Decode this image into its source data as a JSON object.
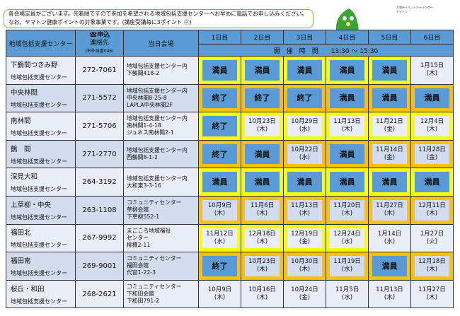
{
  "notice": {
    "line1": "各会場定員がございます。先着順ですので参加を希望される地域包括支援センターへお早めに電話でお申し込みください。",
    "line2": "なお、ヤマトン健康ポイントの対象事業です。(講座受講毎に3ポイント ⓟ)"
  },
  "mascot": {
    "caption1": "大和市イベントキャラクター",
    "caption2": "ヤマトン"
  },
  "header": {
    "center": "地域包括支援センター",
    "phone_line1": "☎申込",
    "phone_line2": "連絡先",
    "phone_note": "(市外局番046)",
    "venue": "当日会場",
    "days": [
      "1日目",
      "2日目",
      "3日目",
      "4日目",
      "5日目",
      "6日目"
    ],
    "time_label": "開　催　時　間　　13:30 ～ 15:30"
  },
  "colors": {
    "header": "#5b9bd5",
    "yellow": "#ffff00",
    "orange": "#ffc000",
    "status": "#5b9bd5"
  },
  "rows": [
    {
      "name": "下鶴間つきみ野",
      "sub": "地域包括支援センター",
      "phone": "272-7061",
      "venue": [
        "地域包括支援センター内",
        "下鶴間418-2"
      ],
      "cells": [
        {
          "t": "満員",
          "s": 1,
          "f": "yellow"
        },
        {
          "t": "満員",
          "s": 1,
          "f": "yellow"
        },
        {
          "t": "満員",
          "s": 1,
          "f": "yellow"
        },
        {
          "t": "満員",
          "s": 1,
          "f": "yellow"
        },
        {
          "t": "満員",
          "s": 1,
          "f": "yellow"
        },
        {
          "t": "1月15日",
          "d": "(木)",
          "f": ""
        }
      ]
    },
    {
      "name": "中央林間",
      "sub": "地域包括支援センター",
      "phone": "271-5572",
      "venue": [
        "地域包括支援センター内",
        "中央林間8-25-8",
        "LAPLA中央林間2F"
      ],
      "cells": [
        {
          "t": "終了",
          "s": 1,
          "f": "orange"
        },
        {
          "t": "終了",
          "s": 1,
          "f": "orange"
        },
        {
          "t": "終了",
          "s": 1,
          "f": "orange"
        },
        {
          "t": "満員",
          "s": 1,
          "f": "orange"
        },
        {
          "t": "満員",
          "s": 1,
          "f": "orange"
        },
        {
          "t": "満員",
          "s": 1,
          "f": "orange"
        }
      ]
    },
    {
      "name": "南林間",
      "sub": "地域包括支援センター",
      "phone": "271-5706",
      "venue": [
        "地域包括支援センター内",
        "南林間1-4-18",
        "ジュネス南林間2-1"
      ],
      "cells": [
        {
          "t": "終了",
          "s": 1,
          "f": "yellow"
        },
        {
          "t": "10月23日",
          "d": "(木)",
          "f": "yellow"
        },
        {
          "t": "10月29日",
          "d": "(水)",
          "f": "yellow"
        },
        {
          "t": "11月13日",
          "d": "(木)",
          "f": "yellow"
        },
        {
          "t": "11月21日",
          "d": "(金)",
          "f": "yellow"
        },
        {
          "t": "12月4日",
          "d": "(木)",
          "f": "yellow"
        }
      ]
    },
    {
      "name": "鶴　間",
      "sub": "地域包括支援センター",
      "phone": "271-2770",
      "venue": [
        "地域包括支援センター内",
        "西鶴間8-1-2"
      ],
      "cells": [
        {
          "t": "終了",
          "s": 1,
          "f": "orange"
        },
        {
          "t": "満員",
          "s": 1,
          "f": "orange"
        },
        {
          "t": "10月22日",
          "d": "(水)",
          "f": "orange"
        },
        {
          "t": "満員",
          "s": 1,
          "f": "orange"
        },
        {
          "t": "11月14日",
          "d": "(金)",
          "f": "orange"
        },
        {
          "t": "11月28日",
          "d": "(金)",
          "f": "orange"
        }
      ]
    },
    {
      "name": "深見大和",
      "sub": "地域包括支援センター",
      "phone": "264-3192",
      "venue": [
        "地域包括支援センター内",
        "大和東3-3-16"
      ],
      "cells": [
        {
          "t": "満員",
          "s": 1,
          "f": "yellow"
        },
        {
          "t": "満員",
          "s": 1,
          "f": "yellow"
        },
        {
          "t": "満員",
          "s": 1,
          "f": "yellow"
        },
        {
          "t": "満員",
          "s": 1,
          "f": "yellow"
        },
        {
          "t": "満員",
          "s": 1,
          "f": "yellow"
        },
        {
          "t": "満員",
          "s": 1,
          "f": "yellow"
        }
      ]
    },
    {
      "name": "上草柳・中央",
      "sub": "地域包括支援センター",
      "phone": "263-1108",
      "venue": [
        "コミュニティセンター",
        "草柳会館",
        "下草柳552-1"
      ],
      "cells": [
        {
          "t": "10月9日",
          "d": "(木)",
          "f": "orange"
        },
        {
          "t": "11月6日",
          "d": "(木)",
          "f": "orange"
        },
        {
          "t": "11月13日",
          "d": "(木)",
          "f": "orange"
        },
        {
          "t": "11月20日",
          "d": "(木)",
          "f": "orange"
        },
        {
          "t": "11月27日",
          "d": "(木)",
          "f": "orange"
        },
        {
          "t": "12月11日",
          "d": "(木)",
          "f": "orange"
        }
      ]
    },
    {
      "name": "福田北",
      "sub": "地域包括支援センター",
      "phone": "267-9992",
      "venue": [
        "まごころ地域福祉",
        "センター",
        "柳橋2-11"
      ],
      "cells": [
        {
          "t": "11月12日",
          "d": "(水)",
          "f": "yellow"
        },
        {
          "t": "12月18日",
          "d": "(木)",
          "f": "yellow"
        },
        {
          "t": "12月19日",
          "d": "(金)",
          "f": "yellow"
        },
        {
          "t": "12月24日",
          "d": "(水)",
          "f": "yellow"
        },
        {
          "t": "1月14日",
          "d": "(水)",
          "f": ""
        },
        {
          "t": "1月27日",
          "d": "(火)",
          "f": ""
        }
      ]
    },
    {
      "name": "福田南",
      "sub": "地域包括支援センター",
      "phone": "269-9001",
      "venue": [
        "コミュニティセンター",
        "福田会館",
        "代官1-22-3"
      ],
      "cells": [
        {
          "t": "終了",
          "s": 1,
          "f": "orange"
        },
        {
          "t": "10月23日",
          "d": "(木)",
          "f": "orange"
        },
        {
          "t": "10月30日",
          "d": "(木)",
          "f": "orange"
        },
        {
          "t": "11月19日",
          "d": "(水)",
          "f": "orange"
        },
        {
          "t": "満員",
          "s": 1,
          "f": "orange"
        },
        {
          "t": "12月18日",
          "d": "(木)",
          "f": "orange"
        }
      ]
    },
    {
      "name": "桜丘・和田",
      "sub": "地域包括支援センター",
      "phone": "268-2621",
      "venue": [
        "コミュニティセンター",
        "下和田会館",
        "下和田791-2"
      ],
      "cells": [
        {
          "t": "10月9日",
          "d": "(木)",
          "f": ""
        },
        {
          "t": "10月16日",
          "d": "(木)",
          "f": ""
        },
        {
          "t": "10月24日",
          "d": "(金)",
          "f": ""
        },
        {
          "t": "11月5日",
          "d": "(水)",
          "f": ""
        },
        {
          "t": "11月13日",
          "d": "(木)",
          "f": ""
        },
        {
          "t": "11月27日",
          "d": "(木)",
          "f": ""
        }
      ]
    }
  ]
}
